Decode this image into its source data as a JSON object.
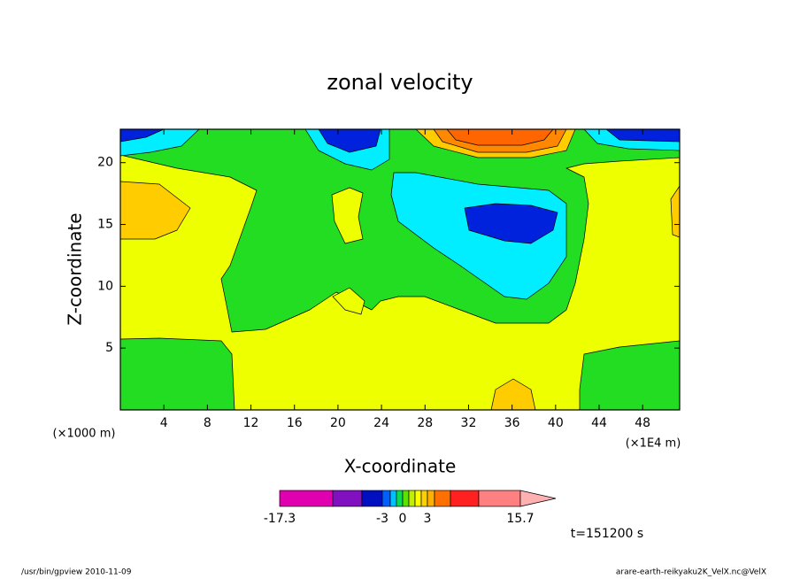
{
  "chart_data": {
    "type": "contour",
    "title": "zonal velocity",
    "xlabel": "X-coordinate",
    "ylabel": "Z-coordinate",
    "x_unit_label": "(×1000 m)",
    "x_unit_label2": "(×1E4 m)",
    "xlim": [
      0,
      51.4
    ],
    "ylim": [
      0,
      22.7
    ],
    "xticks": [
      4,
      8,
      12,
      16,
      20,
      24,
      28,
      32,
      36,
      40,
      44,
      48
    ],
    "yticks": [
      5,
      10,
      15,
      20
    ],
    "field_colors": {
      "base": "#eeff00",
      "green": "#22dd22",
      "cyan": "#00eeff",
      "blue": "#0022dd",
      "light_orange": "#ffcc00",
      "orange": "#ff8800",
      "dark_orange": "#ff6600"
    },
    "colorbar": {
      "colors": [
        "#e000b0",
        "#8010c0",
        "#0010c0",
        "#0060ff",
        "#00c0ff",
        "#00e050",
        "#60e000",
        "#c0f000",
        "#ffff00",
        "#ffd000",
        "#ffb000",
        "#ff7000",
        "#ff2020",
        "#ff8080",
        "#ffb0b0"
      ],
      "ticks": [
        -17.3,
        -3,
        0,
        3,
        15.7
      ]
    },
    "time_label": "t=151200 s",
    "footer_left": "/usr/bin/gpview  2010-11-09",
    "footer_right": "arare-earth-reikyaku2K_VelX.nc@VelX"
  }
}
